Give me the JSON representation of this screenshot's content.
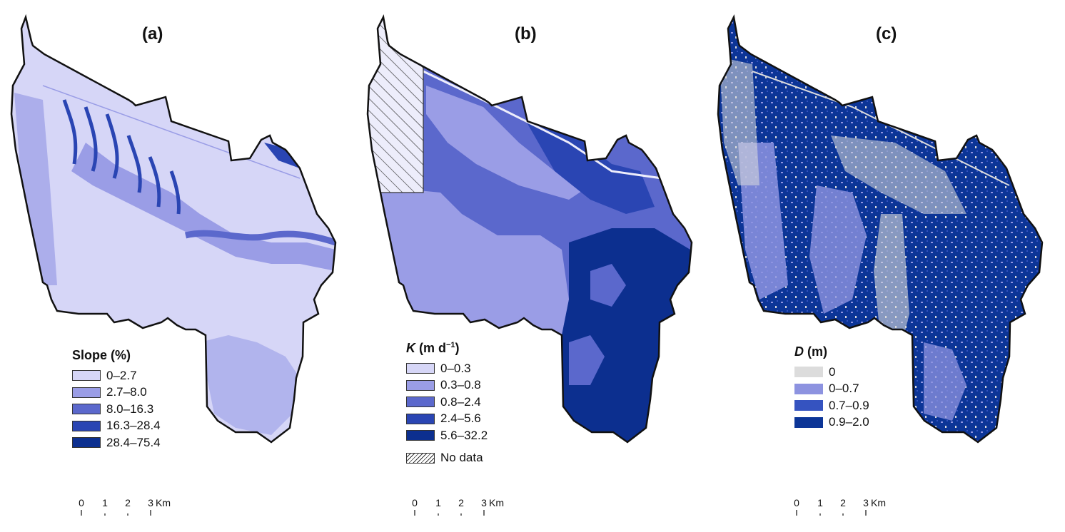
{
  "panels": [
    {
      "id": "a",
      "title": "(a)",
      "legend": {
        "symbol": "Slope",
        "unit": " (%)",
        "items": [
          {
            "label": "0–2.7",
            "color": "#d6d6f7"
          },
          {
            "label": "2.7–8.0",
            "color": "#9a9de6"
          },
          {
            "label": "8.0–16.3",
            "color": "#5b68cc"
          },
          {
            "label": "16.3–28.4",
            "color": "#2a45b3"
          },
          {
            "label": "28.4–75.4",
            "color": "#0c2f8f"
          }
        ]
      },
      "scale": {
        "ticks": [
          "0",
          "1",
          "2",
          "3"
        ],
        "unit": "Km"
      }
    },
    {
      "id": "b",
      "title": "(b)",
      "legend": {
        "symbol": "K",
        "unit": " (m d",
        "unit_sup": "−1",
        "unit_close": ")",
        "items": [
          {
            "label": "0–0.3",
            "color": "#d6d6f7"
          },
          {
            "label": "0.3–0.8",
            "color": "#9a9de6"
          },
          {
            "label": "0.8–2.4",
            "color": "#5b68cc"
          },
          {
            "label": "2.4–5.6",
            "color": "#2a45b3"
          },
          {
            "label": "5.6–32.2",
            "color": "#0c2f8f"
          }
        ],
        "nodata_label": "No data"
      },
      "scale": {
        "ticks": [
          "0",
          "1",
          "2",
          "3"
        ],
        "unit": "Km"
      }
    },
    {
      "id": "c",
      "title": "(c)",
      "legend": {
        "symbol": "D",
        "unit": " (m)",
        "items": [
          {
            "label": "0",
            "color": "#dcdcdc"
          },
          {
            "label": "0–0.7",
            "color": "#8d93e0"
          },
          {
            "label": "0.7–0.9",
            "color": "#3553c0"
          },
          {
            "label": "0.9–2.0",
            "color": "#0c3597"
          }
        ]
      },
      "scale": {
        "ticks": [
          "0",
          "1",
          "2",
          "3"
        ],
        "unit": "Km"
      }
    }
  ]
}
